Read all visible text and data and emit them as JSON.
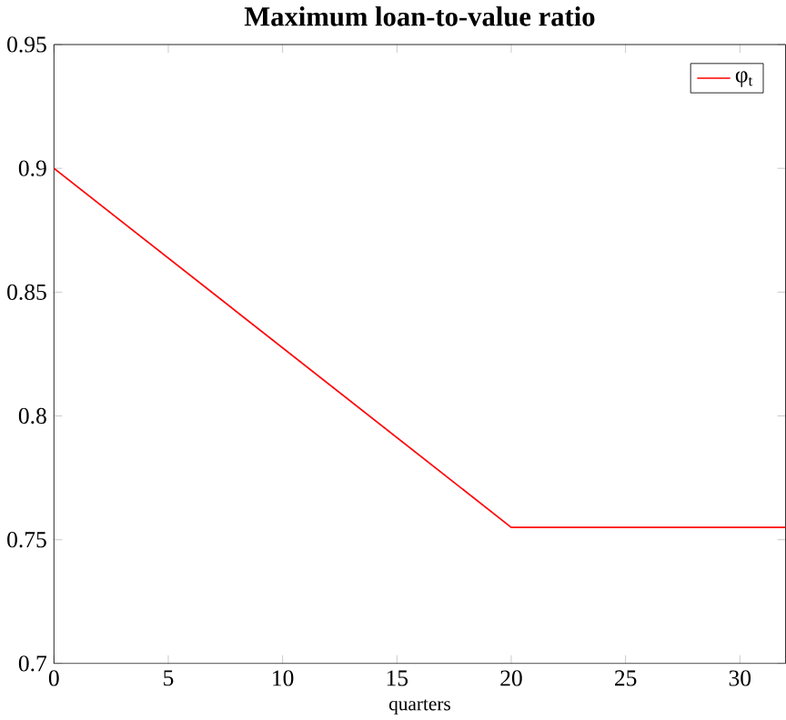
{
  "chart_data": {
    "type": "line",
    "title": "**Maximum loan-to-value ratio**",
    "xlabel": "quarters",
    "x": [
      0,
      20,
      32
    ],
    "series": [
      {
        "name": "φ$_{t}$",
        "color": "#ff0000",
        "values": [
          0.9,
          0.755,
          0.755
        ]
      }
    ],
    "xlim": [
      0,
      32
    ],
    "xticks": [
      0,
      5,
      10,
      15,
      20,
      25,
      30
    ],
    "ylim": [
      0.7,
      0.95
    ],
    "yticks": [
      0.7,
      0.75,
      0.8,
      0.85,
      0.9,
      0.95
    ],
    "legend": "top right",
    "grid": false,
    "marker": "none",
    "line_style": "solid"
  }
}
